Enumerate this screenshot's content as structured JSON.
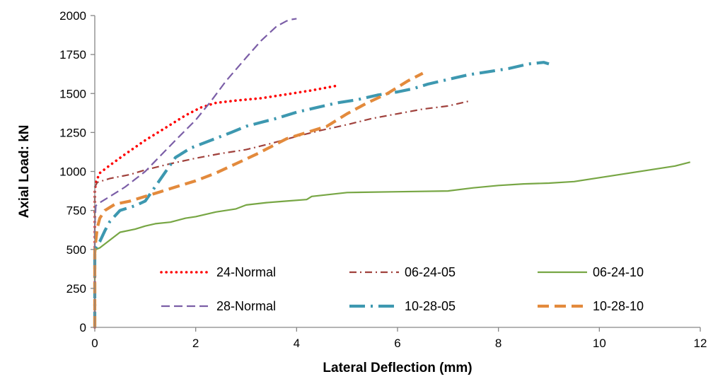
{
  "chart_data": {
    "type": "line",
    "title": "",
    "xlabel": "Lateral Deflection  (mm)",
    "ylabel": "Axial Load: kN",
    "xlim": [
      0,
      12
    ],
    "ylim": [
      0,
      2000
    ],
    "xticks": [
      0,
      2,
      4,
      6,
      8,
      10,
      12
    ],
    "yticks": [
      0,
      250,
      500,
      750,
      1000,
      1250,
      1500,
      1750,
      2000
    ],
    "grid": false,
    "legend_position": "bottom-center",
    "series": [
      {
        "name": "24-Normal",
        "color": "#ff0000",
        "style": "dotted",
        "x": [
          0.0,
          0.0,
          0.02,
          0.1,
          0.3,
          0.6,
          1.0,
          1.4,
          1.8,
          2.1,
          2.4,
          2.8,
          3.3,
          3.8,
          4.3,
          4.8
        ],
        "y": [
          0,
          870,
          930,
          990,
          1040,
          1110,
          1200,
          1280,
          1360,
          1410,
          1440,
          1455,
          1470,
          1495,
          1520,
          1550
        ]
      },
      {
        "name": "06-24-05",
        "color": "#a0413c",
        "style": "dash-dot",
        "x": [
          0.0,
          0.0,
          0.05,
          0.3,
          0.7,
          1.0,
          1.5,
          2.0,
          2.5,
          3.0,
          3.5,
          4.0,
          4.5,
          5.0,
          5.5,
          6.0,
          6.5,
          7.0,
          7.4
        ],
        "y": [
          0,
          900,
          930,
          955,
          980,
          1010,
          1050,
          1085,
          1115,
          1140,
          1180,
          1225,
          1265,
          1300,
          1340,
          1370,
          1400,
          1420,
          1450
        ]
      },
      {
        "name": "06-24-10",
        "color": "#77a644",
        "style": "solid",
        "x": [
          0.0,
          0.0,
          0.02,
          0.1,
          0.3,
          0.5,
          0.8,
          1.0,
          1.2,
          1.5,
          1.8,
          2.0,
          2.4,
          2.8,
          3.0,
          3.4,
          3.8,
          4.2,
          4.3,
          5.0,
          6.0,
          7.0,
          7.5,
          8.0,
          8.5,
          9.0,
          9.5,
          10.0,
          10.5,
          11.0,
          11.5,
          11.8
        ],
        "y": [
          0,
          430,
          500,
          510,
          560,
          610,
          630,
          650,
          665,
          675,
          700,
          710,
          740,
          760,
          785,
          800,
          810,
          820,
          840,
          865,
          870,
          875,
          895,
          910,
          920,
          925,
          935,
          960,
          985,
          1010,
          1035,
          1060
        ]
      },
      {
        "name": "28-Normal",
        "color": "#7b5ea7",
        "style": "dashed",
        "x": [
          0.0,
          0.0,
          0.02,
          0.1,
          0.3,
          0.6,
          1.0,
          1.3,
          1.6,
          2.0,
          2.3,
          2.6,
          3.0,
          3.3,
          3.6,
          3.8,
          3.9,
          4.0
        ],
        "y": [
          0,
          650,
          780,
          800,
          840,
          900,
          1000,
          1100,
          1200,
          1330,
          1450,
          1580,
          1730,
          1840,
          1930,
          1965,
          1975,
          1980
        ]
      },
      {
        "name": "10-28-05",
        "color": "#3d98b0",
        "style": "long-dash-dot",
        "x": [
          0.0,
          0.0,
          0.1,
          0.2,
          0.3,
          0.5,
          0.8,
          1.0,
          1.3,
          1.6,
          1.9,
          2.3,
          2.7,
          3.0,
          3.3,
          3.6,
          4.0,
          4.4,
          4.8,
          5.2,
          5.6,
          6.0,
          6.3,
          6.6,
          7.0,
          7.4,
          7.8,
          8.2,
          8.6,
          8.9,
          9.0
        ],
        "y": [
          0,
          500,
          550,
          620,
          680,
          750,
          780,
          810,
          950,
          1090,
          1150,
          1200,
          1250,
          1290,
          1315,
          1340,
          1380,
          1410,
          1440,
          1460,
          1490,
          1510,
          1530,
          1560,
          1590,
          1620,
          1640,
          1660,
          1690,
          1700,
          1690
        ]
      },
      {
        "name": "10-28-10",
        "color": "#e38a3c",
        "style": "long-dash",
        "x": [
          0.0,
          0.0,
          0.05,
          0.1,
          0.2,
          0.4,
          0.7,
          1.0,
          1.3,
          1.6,
          2.0,
          2.4,
          2.8,
          3.2,
          3.5,
          3.8,
          4.2,
          4.6,
          5.0,
          5.4,
          5.8,
          6.2,
          6.5
        ],
        "y": [
          0,
          500,
          640,
          700,
          750,
          790,
          810,
          840,
          870,
          900,
          940,
          990,
          1050,
          1110,
          1160,
          1210,
          1250,
          1290,
          1370,
          1440,
          1500,
          1580,
          1630
        ]
      }
    ]
  }
}
